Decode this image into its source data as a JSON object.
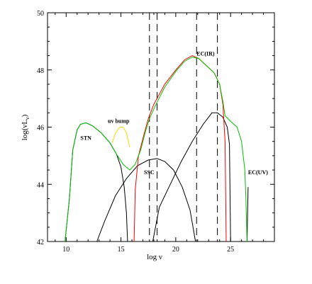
{
  "chart_data": {
    "type": "line",
    "title": "",
    "xlabel": "log ν",
    "ylabel": "log(νL",
    "ylabel_sub": "ν",
    "ylabel_close": ")",
    "xlim": [
      8.3,
      29.0
    ],
    "ylim": [
      42,
      50
    ],
    "x_ticks": [
      10,
      15,
      20,
      25
    ],
    "y_ticks": [
      42,
      44,
      46,
      48,
      50
    ],
    "grid": false,
    "legend": "none",
    "vlines": [
      17.6,
      18.3,
      21.9,
      23.8
    ],
    "annotations": [
      {
        "text": "STN",
        "x": 11.3,
        "y": 45.55
      },
      {
        "text": "uv bump",
        "x": 13.8,
        "y": 46.15
      },
      {
        "text": "SSC",
        "x": 17.1,
        "y": 44.35
      },
      {
        "text": "EC(IR)",
        "x": 21.9,
        "y": 48.5
      },
      {
        "text": "EC(UV)",
        "x": 26.6,
        "y": 44.35
      }
    ],
    "series": [
      {
        "color": "#000000",
        "points": [
          [
            9.9,
            42.0
          ],
          [
            10.3,
            43.5
          ],
          [
            10.6,
            45.2
          ],
          [
            11.0,
            45.9
          ],
          [
            11.3,
            46.1
          ],
          [
            11.8,
            46.15
          ],
          [
            12.4,
            46.05
          ],
          [
            13.2,
            45.8
          ],
          [
            14.0,
            45.45
          ],
          [
            14.6,
            45.05
          ],
          [
            15.0,
            44.6
          ],
          [
            15.3,
            43.9
          ],
          [
            15.5,
            43.0
          ],
          [
            15.6,
            42.0
          ]
        ]
      },
      {
        "color": "#ffd700",
        "points": [
          [
            14.2,
            45.45
          ],
          [
            14.5,
            45.8
          ],
          [
            14.9,
            46.0
          ],
          [
            15.2,
            46.0
          ],
          [
            15.5,
            45.8
          ],
          [
            15.8,
            45.3
          ]
        ]
      },
      {
        "color": "#000000",
        "points": [
          [
            12.8,
            42.0
          ],
          [
            13.5,
            42.7
          ],
          [
            14.5,
            43.6
          ],
          [
            15.5,
            44.2
          ],
          [
            16.5,
            44.65
          ],
          [
            17.5,
            44.85
          ],
          [
            18.3,
            44.9
          ],
          [
            19.0,
            44.8
          ],
          [
            19.8,
            44.5
          ],
          [
            20.6,
            43.9
          ],
          [
            21.3,
            43.1
          ],
          [
            21.8,
            42.0
          ]
        ]
      },
      {
        "color": "#000000",
        "points": [
          [
            17.9,
            42.0
          ],
          [
            18.5,
            43.2
          ],
          [
            19.5,
            44.0
          ],
          [
            20.5,
            44.8
          ],
          [
            21.5,
            45.5
          ],
          [
            22.5,
            46.1
          ],
          [
            23.3,
            46.5
          ],
          [
            23.8,
            46.5
          ],
          [
            24.3,
            46.35
          ],
          [
            24.7,
            46.0
          ],
          [
            24.9,
            45.4
          ],
          [
            25.0,
            42.0
          ]
        ]
      },
      {
        "color": "#ff0000",
        "points": [
          [
            16.2,
            42.0
          ],
          [
            16.3,
            43.8
          ],
          [
            16.6,
            45.0
          ],
          [
            17.0,
            45.6
          ],
          [
            17.5,
            46.3
          ],
          [
            18.0,
            46.8
          ],
          [
            19.0,
            47.5
          ],
          [
            20.0,
            48.0
          ],
          [
            20.8,
            48.35
          ],
          [
            21.5,
            48.5
          ],
          [
            22.1,
            48.4
          ],
          [
            22.8,
            48.15
          ],
          [
            23.5,
            47.9
          ],
          [
            24.0,
            47.5
          ],
          [
            24.3,
            46.8
          ],
          [
            24.5,
            45.5
          ],
          [
            24.6,
            42.0
          ]
        ]
      },
      {
        "color": "#000000",
        "points": [
          [
            26.5,
            42.0
          ],
          [
            26.6,
            43.9
          ]
        ]
      },
      {
        "color": "#00c000",
        "points": [
          [
            9.9,
            42.0
          ],
          [
            10.3,
            43.5
          ],
          [
            10.6,
            45.2
          ],
          [
            11.0,
            45.9
          ],
          [
            11.3,
            46.1
          ],
          [
            11.8,
            46.15
          ],
          [
            12.4,
            46.05
          ],
          [
            13.2,
            45.8
          ],
          [
            14.0,
            45.45
          ],
          [
            14.6,
            45.05
          ],
          [
            15.2,
            44.7
          ],
          [
            15.8,
            44.5
          ],
          [
            16.3,
            44.7
          ],
          [
            16.8,
            45.2
          ],
          [
            17.2,
            45.8
          ],
          [
            17.6,
            46.3
          ],
          [
            18.2,
            46.8
          ],
          [
            19.0,
            47.4
          ],
          [
            20.0,
            47.95
          ],
          [
            20.8,
            48.3
          ],
          [
            21.5,
            48.45
          ],
          [
            22.1,
            48.4
          ],
          [
            22.8,
            48.15
          ],
          [
            23.5,
            47.9
          ],
          [
            24.0,
            47.5
          ],
          [
            24.3,
            46.9
          ],
          [
            24.5,
            46.4
          ],
          [
            25.0,
            46.2
          ],
          [
            25.6,
            46.0
          ],
          [
            26.0,
            45.5
          ],
          [
            26.3,
            44.5
          ],
          [
            26.4,
            43.5
          ],
          [
            26.5,
            42.0
          ]
        ]
      }
    ]
  }
}
